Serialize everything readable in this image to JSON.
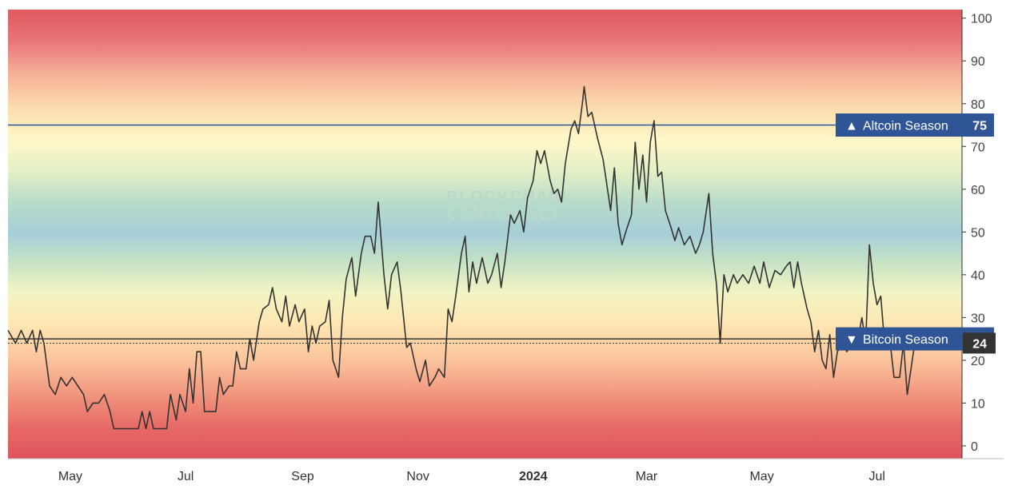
{
  "chart_data": {
    "type": "line",
    "title": "",
    "xlabel": "",
    "ylabel": "",
    "ylim": [
      -3,
      102
    ],
    "y_ticks": [
      0,
      10,
      20,
      30,
      40,
      50,
      60,
      70,
      80,
      90,
      100
    ],
    "x_tick_labels": [
      {
        "label": "May",
        "bold": false
      },
      {
        "label": "Jul",
        "bold": false
      },
      {
        "label": "Sep",
        "bold": false
      },
      {
        "label": "Nov",
        "bold": false
      },
      {
        "label": "2024",
        "bold": true
      },
      {
        "label": "Mar",
        "bold": false
      },
      {
        "label": "May",
        "bold": false
      },
      {
        "label": "Jul",
        "bold": false
      }
    ],
    "x_range": [
      "2023-03-29",
      "2024-08-15"
    ],
    "x_tick_dates": [
      "2023-05-01",
      "2023-07-01",
      "2023-09-01",
      "2023-11-01",
      "2024-01-01",
      "2024-03-01",
      "2024-05-01",
      "2024-07-01"
    ],
    "background": "vertical heat gradient: red at 0 and 100, orange/yellow mid-range, blue-green around 50",
    "thresholds": [
      {
        "label": "Altcoin Season",
        "symbol": "▲",
        "value": 75,
        "color": "#2f5597"
      },
      {
        "label": "Bitcoin Season",
        "symbol": "▼",
        "value": 25,
        "color": "#2f5597"
      }
    ],
    "current_value": 24,
    "current_value_label": "24",
    "line_color": "#333333",
    "watermark": [
      "BLOCKCHAIN",
      "CENTER.NET"
    ],
    "series": [
      {
        "points": [
          [
            "2023-03-29",
            27
          ],
          [
            "2023-04-02",
            24
          ],
          [
            "2023-04-05",
            27
          ],
          [
            "2023-04-08",
            24
          ],
          [
            "2023-04-11",
            27
          ],
          [
            "2023-04-13",
            22
          ],
          [
            "2023-04-15",
            27
          ],
          [
            "2023-04-17",
            24
          ],
          [
            "2023-04-20",
            14
          ],
          [
            "2023-04-23",
            12
          ],
          [
            "2023-04-26",
            16
          ],
          [
            "2023-04-29",
            14
          ],
          [
            "2023-05-02",
            16
          ],
          [
            "2023-05-05",
            14
          ],
          [
            "2023-05-08",
            12
          ],
          [
            "2023-05-10",
            8
          ],
          [
            "2023-05-13",
            10
          ],
          [
            "2023-05-16",
            10
          ],
          [
            "2023-05-19",
            12
          ],
          [
            "2023-05-22",
            8
          ],
          [
            "2023-05-24",
            4
          ],
          [
            "2023-05-27",
            4
          ],
          [
            "2023-05-31",
            4
          ],
          [
            "2023-06-03",
            4
          ],
          [
            "2023-06-06",
            4
          ],
          [
            "2023-06-08",
            8
          ],
          [
            "2023-06-10",
            4
          ],
          [
            "2023-06-12",
            8
          ],
          [
            "2023-06-14",
            4
          ],
          [
            "2023-06-17",
            4
          ],
          [
            "2023-06-21",
            4
          ],
          [
            "2023-06-23",
            12
          ],
          [
            "2023-06-26",
            6
          ],
          [
            "2023-06-28",
            12
          ],
          [
            "2023-07-01",
            8
          ],
          [
            "2023-07-03",
            18
          ],
          [
            "2023-07-05",
            10
          ],
          [
            "2023-07-07",
            22
          ],
          [
            "2023-07-09",
            22
          ],
          [
            "2023-07-11",
            8
          ],
          [
            "2023-07-14",
            8
          ],
          [
            "2023-07-17",
            8
          ],
          [
            "2023-07-19",
            16
          ],
          [
            "2023-07-21",
            12
          ],
          [
            "2023-07-24",
            14
          ],
          [
            "2023-07-26",
            14
          ],
          [
            "2023-07-28",
            22
          ],
          [
            "2023-07-30",
            18
          ],
          [
            "2023-08-02",
            18
          ],
          [
            "2023-08-04",
            25
          ],
          [
            "2023-08-06",
            20
          ],
          [
            "2023-08-09",
            29
          ],
          [
            "2023-08-11",
            32
          ],
          [
            "2023-08-14",
            33
          ],
          [
            "2023-08-16",
            37
          ],
          [
            "2023-08-18",
            32
          ],
          [
            "2023-08-21",
            29
          ],
          [
            "2023-08-23",
            35
          ],
          [
            "2023-08-25",
            28
          ],
          [
            "2023-08-28",
            33
          ],
          [
            "2023-08-30",
            29
          ],
          [
            "2023-09-02",
            32
          ],
          [
            "2023-09-04",
            22
          ],
          [
            "2023-09-06",
            28
          ],
          [
            "2023-09-08",
            24
          ],
          [
            "2023-09-10",
            28
          ],
          [
            "2023-09-13",
            29
          ],
          [
            "2023-09-15",
            34
          ],
          [
            "2023-09-17",
            20
          ],
          [
            "2023-09-20",
            16
          ],
          [
            "2023-09-22",
            30
          ],
          [
            "2023-09-24",
            39
          ],
          [
            "2023-09-27",
            44
          ],
          [
            "2023-09-29",
            35
          ],
          [
            "2023-10-02",
            45
          ],
          [
            "2023-10-04",
            49
          ],
          [
            "2023-10-07",
            49
          ],
          [
            "2023-10-09",
            45
          ],
          [
            "2023-10-11",
            57
          ],
          [
            "2023-10-14",
            40
          ],
          [
            "2023-10-16",
            32
          ],
          [
            "2023-10-18",
            40
          ],
          [
            "2023-10-21",
            43
          ],
          [
            "2023-10-23",
            36
          ],
          [
            "2023-10-26",
            23
          ],
          [
            "2023-10-28",
            24
          ],
          [
            "2023-10-31",
            18
          ],
          [
            "2023-11-02",
            15
          ],
          [
            "2023-11-05",
            20
          ],
          [
            "2023-11-07",
            14
          ],
          [
            "2023-11-10",
            16
          ],
          [
            "2023-11-12",
            18
          ],
          [
            "2023-11-15",
            16
          ],
          [
            "2023-11-17",
            32
          ],
          [
            "2023-11-19",
            29
          ],
          [
            "2023-11-21",
            35
          ],
          [
            "2023-11-24",
            45
          ],
          [
            "2023-11-26",
            49
          ],
          [
            "2023-11-28",
            36
          ],
          [
            "2023-11-30",
            43
          ],
          [
            "2023-12-02",
            38
          ],
          [
            "2023-12-05",
            44
          ],
          [
            "2023-12-08",
            38
          ],
          [
            "2023-12-10",
            40
          ],
          [
            "2023-12-13",
            45
          ],
          [
            "2023-12-15",
            37
          ],
          [
            "2023-12-17",
            43
          ],
          [
            "2023-12-20",
            54
          ],
          [
            "2023-12-22",
            52
          ],
          [
            "2023-12-25",
            55
          ],
          [
            "2023-12-27",
            50
          ],
          [
            "2023-12-29",
            58
          ],
          [
            "2024-01-01",
            62
          ],
          [
            "2024-01-03",
            69
          ],
          [
            "2024-01-05",
            66
          ],
          [
            "2024-01-07",
            69
          ],
          [
            "2024-01-10",
            62
          ],
          [
            "2024-01-12",
            59
          ],
          [
            "2024-01-14",
            60
          ],
          [
            "2024-01-16",
            57
          ],
          [
            "2024-01-18",
            66
          ],
          [
            "2024-01-21",
            74
          ],
          [
            "2024-01-23",
            76
          ],
          [
            "2024-01-25",
            73
          ],
          [
            "2024-01-27",
            80
          ],
          [
            "2024-01-28",
            84
          ],
          [
            "2024-01-30",
            77
          ],
          [
            "2024-02-01",
            78
          ],
          [
            "2024-02-04",
            72
          ],
          [
            "2024-02-07",
            67
          ],
          [
            "2024-02-09",
            61
          ],
          [
            "2024-02-11",
            55
          ],
          [
            "2024-02-13",
            65
          ],
          [
            "2024-02-15",
            52
          ],
          [
            "2024-02-17",
            47
          ],
          [
            "2024-02-19",
            50
          ],
          [
            "2024-02-22",
            54
          ],
          [
            "2024-02-24",
            71
          ],
          [
            "2024-02-26",
            60
          ],
          [
            "2024-02-28",
            68
          ],
          [
            "2024-03-01",
            57
          ],
          [
            "2024-03-03",
            71
          ],
          [
            "2024-03-05",
            76
          ],
          [
            "2024-03-07",
            63
          ],
          [
            "2024-03-09",
            64
          ],
          [
            "2024-03-11",
            55
          ],
          [
            "2024-03-14",
            51
          ],
          [
            "2024-03-16",
            48
          ],
          [
            "2024-03-18",
            51
          ],
          [
            "2024-03-21",
            47
          ],
          [
            "2024-03-24",
            49
          ],
          [
            "2024-03-27",
            45
          ],
          [
            "2024-03-29",
            47
          ],
          [
            "2024-03-31",
            50
          ],
          [
            "2024-04-03",
            59
          ],
          [
            "2024-04-05",
            45
          ],
          [
            "2024-04-07",
            38
          ],
          [
            "2024-04-09",
            24
          ],
          [
            "2024-04-11",
            40
          ],
          [
            "2024-04-13",
            36
          ],
          [
            "2024-04-16",
            40
          ],
          [
            "2024-04-18",
            38
          ],
          [
            "2024-04-21",
            40
          ],
          [
            "2024-04-24",
            38
          ],
          [
            "2024-04-27",
            42
          ],
          [
            "2024-04-30",
            38
          ],
          [
            "2024-05-02",
            43
          ],
          [
            "2024-05-05",
            37
          ],
          [
            "2024-05-08",
            41
          ],
          [
            "2024-05-11",
            40
          ],
          [
            "2024-05-14",
            42
          ],
          [
            "2024-05-16",
            43
          ],
          [
            "2024-05-18",
            37
          ],
          [
            "2024-05-20",
            43
          ],
          [
            "2024-05-22",
            38
          ],
          [
            "2024-05-25",
            32
          ],
          [
            "2024-05-27",
            29
          ],
          [
            "2024-05-29",
            22
          ],
          [
            "2024-05-31",
            27
          ],
          [
            "2024-06-02",
            20
          ],
          [
            "2024-06-04",
            18
          ],
          [
            "2024-06-06",
            26
          ],
          [
            "2024-06-08",
            16
          ],
          [
            "2024-06-10",
            22
          ],
          [
            "2024-06-13",
            24
          ],
          [
            "2024-06-15",
            22
          ],
          [
            "2024-06-18",
            24
          ],
          [
            "2024-06-21",
            25
          ],
          [
            "2024-06-23",
            30
          ],
          [
            "2024-06-25",
            24
          ],
          [
            "2024-06-27",
            47
          ],
          [
            "2024-06-29",
            38
          ],
          [
            "2024-07-01",
            33
          ],
          [
            "2024-07-03",
            35
          ],
          [
            "2024-07-05",
            24
          ],
          [
            "2024-07-08",
            24
          ],
          [
            "2024-07-10",
            16
          ],
          [
            "2024-07-13",
            16
          ],
          [
            "2024-07-15",
            24
          ],
          [
            "2024-07-17",
            12
          ],
          [
            "2024-07-19",
            18
          ],
          [
            "2024-07-21",
            24
          ],
          [
            "2024-07-23",
            24
          ]
        ]
      }
    ]
  }
}
